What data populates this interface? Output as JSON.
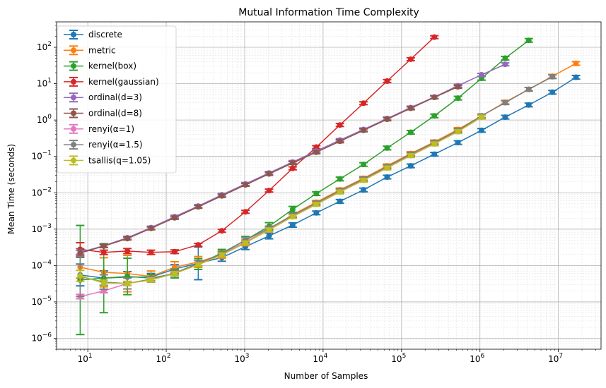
{
  "chart_data": {
    "type": "line",
    "title": "Mutual Information Time Complexity",
    "xlabel": "Number of Samples",
    "ylabel": "Mean Time (seconds)",
    "xscale": "log",
    "yscale": "log",
    "xlim": [
      4,
      35000000
    ],
    "ylim": [
      5e-07,
      500
    ],
    "x_ticks": [
      {
        "value": 10,
        "label": "10",
        "exp": "1"
      },
      {
        "value": 100,
        "label": "10",
        "exp": "2"
      },
      {
        "value": 1000,
        "label": "10",
        "exp": "3"
      },
      {
        "value": 10000,
        "label": "10",
        "exp": "4"
      },
      {
        "value": 100000,
        "label": "10",
        "exp": "5"
      },
      {
        "value": 1000000,
        "label": "10",
        "exp": "6"
      },
      {
        "value": 10000000,
        "label": "10",
        "exp": "7"
      }
    ],
    "y_ticks": [
      {
        "value": 1e-06,
        "label": "10",
        "exp": "−6"
      },
      {
        "value": 1e-05,
        "label": "10",
        "exp": "−5"
      },
      {
        "value": 0.0001,
        "label": "10",
        "exp": "−4"
      },
      {
        "value": 0.001,
        "label": "10",
        "exp": "−3"
      },
      {
        "value": 0.01,
        "label": "10",
        "exp": "−2"
      },
      {
        "value": 0.1,
        "label": "10",
        "exp": "−1"
      },
      {
        "value": 1,
        "label": "10",
        "exp": "0"
      },
      {
        "value": 10,
        "label": "10",
        "exp": "1"
      },
      {
        "value": 100,
        "label": "10",
        "exp": "2"
      }
    ],
    "grid": true,
    "legend_position": "top-left",
    "series": [
      {
        "name": "discrete",
        "label_plain": "discrete",
        "color": "#1f77b4",
        "x": [
          8,
          16,
          32,
          64,
          128,
          256,
          512,
          1024,
          2048,
          4096,
          8192,
          16384,
          32768,
          65536,
          131072,
          262144,
          524288,
          1048576,
          2097152,
          4194304,
          8388608,
          16777216
        ],
        "y": [
          5.5e-05,
          4.5e-05,
          4.8e-05,
          4.8e-05,
          8e-05,
          0.000115,
          0.000165,
          0.00033,
          0.00065,
          0.0013,
          0.0028,
          0.0058,
          0.012,
          0.027,
          0.055,
          0.115,
          0.24,
          0.52,
          1.2,
          2.6,
          5.8,
          15
        ],
        "err": [
          0.3,
          0.2,
          0.15,
          0.1,
          0.12,
          0.45,
          0.1,
          0.08,
          0.08,
          0.06,
          0.05,
          0.05,
          0.05,
          0.05,
          0.05,
          0.05,
          0.05,
          0.05,
          0.05,
          0.05,
          0.05,
          0.05
        ]
      },
      {
        "name": "metric",
        "label_plain": "metric",
        "color": "#ff7f0e",
        "x": [
          8,
          16,
          32,
          64,
          128,
          256,
          512,
          1024,
          2048,
          4096,
          8192,
          16384,
          32768,
          65536,
          131072,
          262144,
          524288,
          1048576,
          2097152,
          4194304,
          8388608,
          16777216
        ],
        "y": [
          9e-05,
          6.5e-05,
          6e-05,
          5e-05,
          9e-05,
          0.000125,
          0.0002,
          0.00042,
          0.001,
          0.0025,
          0.0055,
          0.012,
          0.025,
          0.055,
          0.12,
          0.25,
          0.55,
          1.3,
          3.1,
          7.0,
          16,
          36
        ],
        "err": [
          0.3,
          0.4,
          0.5,
          0.15,
          0.15,
          0.15,
          0.1,
          0.08,
          0.08,
          0.06,
          0.05,
          0.05,
          0.05,
          0.05,
          0.05,
          0.05,
          0.05,
          0.05,
          0.05,
          0.05,
          0.05,
          0.05
        ]
      },
      {
        "name": "kernel(box)",
        "label_plain": "kernel(box)",
        "color": "#2ca02c",
        "x": [
          8,
          16,
          32,
          64,
          128,
          256,
          512,
          1024,
          2048,
          4096,
          8192,
          16384,
          32768,
          65536,
          131072,
          262144,
          524288,
          1048576,
          2097152,
          4194304
        ],
        "y": [
          4e-05,
          4.5e-05,
          5e-05,
          4.5e-05,
          6e-05,
          0.00011,
          0.00022,
          0.0005,
          0.0012,
          0.0035,
          0.0095,
          0.024,
          0.06,
          0.17,
          0.46,
          1.3,
          4.0,
          14,
          50,
          155
        ],
        "err": [
          1.5,
          0.95,
          0.5,
          0.1,
          0.12,
          0.15,
          0.1,
          0.1,
          0.1,
          0.08,
          0.05,
          0.05,
          0.05,
          0.05,
          0.05,
          0.05,
          0.05,
          0.05,
          0.05,
          0.05
        ]
      },
      {
        "name": "kernel(gaussian)",
        "label_plain": "kernel(gaussian)",
        "color": "#d62728",
        "x": [
          8,
          16,
          32,
          64,
          128,
          256,
          512,
          1024,
          2048,
          4096,
          8192,
          16384,
          32768,
          65536,
          131072,
          262144
        ],
        "y": [
          0.00028,
          0.00023,
          0.00025,
          0.00023,
          0.00024,
          0.00037,
          0.0009,
          0.003,
          0.0115,
          0.047,
          0.18,
          0.73,
          2.9,
          11.8,
          47,
          190
        ],
        "err": [
          0.18,
          0.06,
          0.07,
          0.06,
          0.05,
          0.04,
          0.04,
          0.04,
          0.04,
          0.04,
          0.04,
          0.04,
          0.04,
          0.04,
          0.04,
          0.04
        ]
      },
      {
        "name": "ordinal(d=3)",
        "label_plain": "ordinal(d=3)",
        "color": "#9467bd",
        "x": [
          8,
          16,
          32,
          64,
          128,
          256,
          512,
          1024,
          2048,
          4096,
          8192,
          16384,
          32768,
          65536,
          131072,
          262144,
          524288,
          1048576,
          2097152
        ],
        "y": [
          0.00023,
          0.00035,
          0.00058,
          0.0011,
          0.0022,
          0.0043,
          0.0088,
          0.0175,
          0.035,
          0.07,
          0.14,
          0.28,
          0.55,
          1.1,
          2.2,
          4.3,
          8.8,
          17.5,
          34
        ],
        "err": [
          0.05,
          0.04,
          0.04,
          0.04,
          0.04,
          0.04,
          0.04,
          0.04,
          0.04,
          0.04,
          0.04,
          0.04,
          0.04,
          0.04,
          0.04,
          0.04,
          0.04,
          0.04,
          0.04
        ]
      },
      {
        "name": "ordinal(d=8)",
        "label_plain": "ordinal(d=8)",
        "color": "#8c564b",
        "x": [
          8,
          16,
          32,
          64,
          128,
          256,
          512,
          1024,
          2048,
          4096,
          8192,
          16384,
          32768,
          65536,
          131072,
          262144,
          524288
        ],
        "y": [
          0.00022,
          0.00034,
          0.00055,
          0.00105,
          0.00205,
          0.0041,
          0.0082,
          0.0165,
          0.033,
          0.066,
          0.13,
          0.26,
          0.52,
          1.05,
          2.1,
          4.2,
          8.2
        ],
        "err": [
          0.12,
          0.04,
          0.04,
          0.04,
          0.04,
          0.04,
          0.04,
          0.04,
          0.04,
          0.04,
          0.04,
          0.04,
          0.04,
          0.04,
          0.04,
          0.04,
          0.04
        ]
      },
      {
        "name": "renyi(α=1)",
        "label_plain": "renyi(α=1)",
        "color": "#e377c2",
        "x": [
          8,
          16,
          32,
          64,
          128,
          256,
          512,
          1024,
          2048,
          4096,
          8192,
          16384,
          32768,
          65536,
          131072,
          262144,
          524288,
          1048576
        ],
        "y": [
          1.4e-05,
          2e-05,
          3.2e-05,
          4.2e-05,
          6.2e-05,
          0.00011,
          0.000205,
          0.00044,
          0.001,
          0.0023,
          0.005,
          0.011,
          0.023,
          0.05,
          0.11,
          0.23,
          0.5,
          1.25
        ],
        "err": [
          0.06,
          0.05,
          0.05,
          0.05,
          0.05,
          0.05,
          0.05,
          0.05,
          0.05,
          0.05,
          0.05,
          0.05,
          0.05,
          0.05,
          0.05,
          0.05,
          0.05,
          0.05
        ]
      },
      {
        "name": "renyi(α=1.5)",
        "label_plain": "renyi(α=1.5)",
        "color": "#7f7f7f",
        "x": [
          8,
          16,
          32,
          64,
          128,
          256,
          512,
          1024,
          2048,
          4096,
          8192,
          16384,
          32768,
          65536,
          131072,
          262144,
          524288,
          1048576,
          2097152,
          4194304,
          8388608
        ],
        "y": [
          5e-05,
          3.5e-05,
          3.2e-05,
          4.2e-05,
          6.2e-05,
          0.000115,
          0.00021,
          0.0005,
          0.00105,
          0.0024,
          0.0052,
          0.0115,
          0.024,
          0.052,
          0.115,
          0.24,
          0.52,
          1.3,
          3.0,
          7.0,
          15.5
        ],
        "err": [
          0.55,
          0.2,
          0.15,
          0.08,
          0.08,
          0.08,
          0.06,
          0.06,
          0.06,
          0.06,
          0.05,
          0.05,
          0.05,
          0.05,
          0.05,
          0.05,
          0.05,
          0.05,
          0.05,
          0.05,
          0.05
        ]
      },
      {
        "name": "tsallis(q=1.05)",
        "label_plain": "tsallis(q=1.05)",
        "color": "#bcbd22",
        "x": [
          8,
          16,
          32,
          64,
          128,
          256,
          512,
          1024,
          2048,
          4096,
          8192,
          16384,
          32768,
          65536,
          131072,
          262144,
          524288,
          1048576
        ],
        "y": [
          5.2e-05,
          3.3e-05,
          3.2e-05,
          4e-05,
          6e-05,
          0.000105,
          0.000195,
          0.00042,
          0.00095,
          0.0022,
          0.0048,
          0.0105,
          0.022,
          0.048,
          0.105,
          0.22,
          0.48,
          1.2
        ],
        "err": [
          0.15,
          0.08,
          0.06,
          0.05,
          0.05,
          0.05,
          0.05,
          0.05,
          0.05,
          0.05,
          0.05,
          0.05,
          0.05,
          0.05,
          0.05,
          0.05,
          0.05,
          0.05
        ]
      }
    ]
  }
}
